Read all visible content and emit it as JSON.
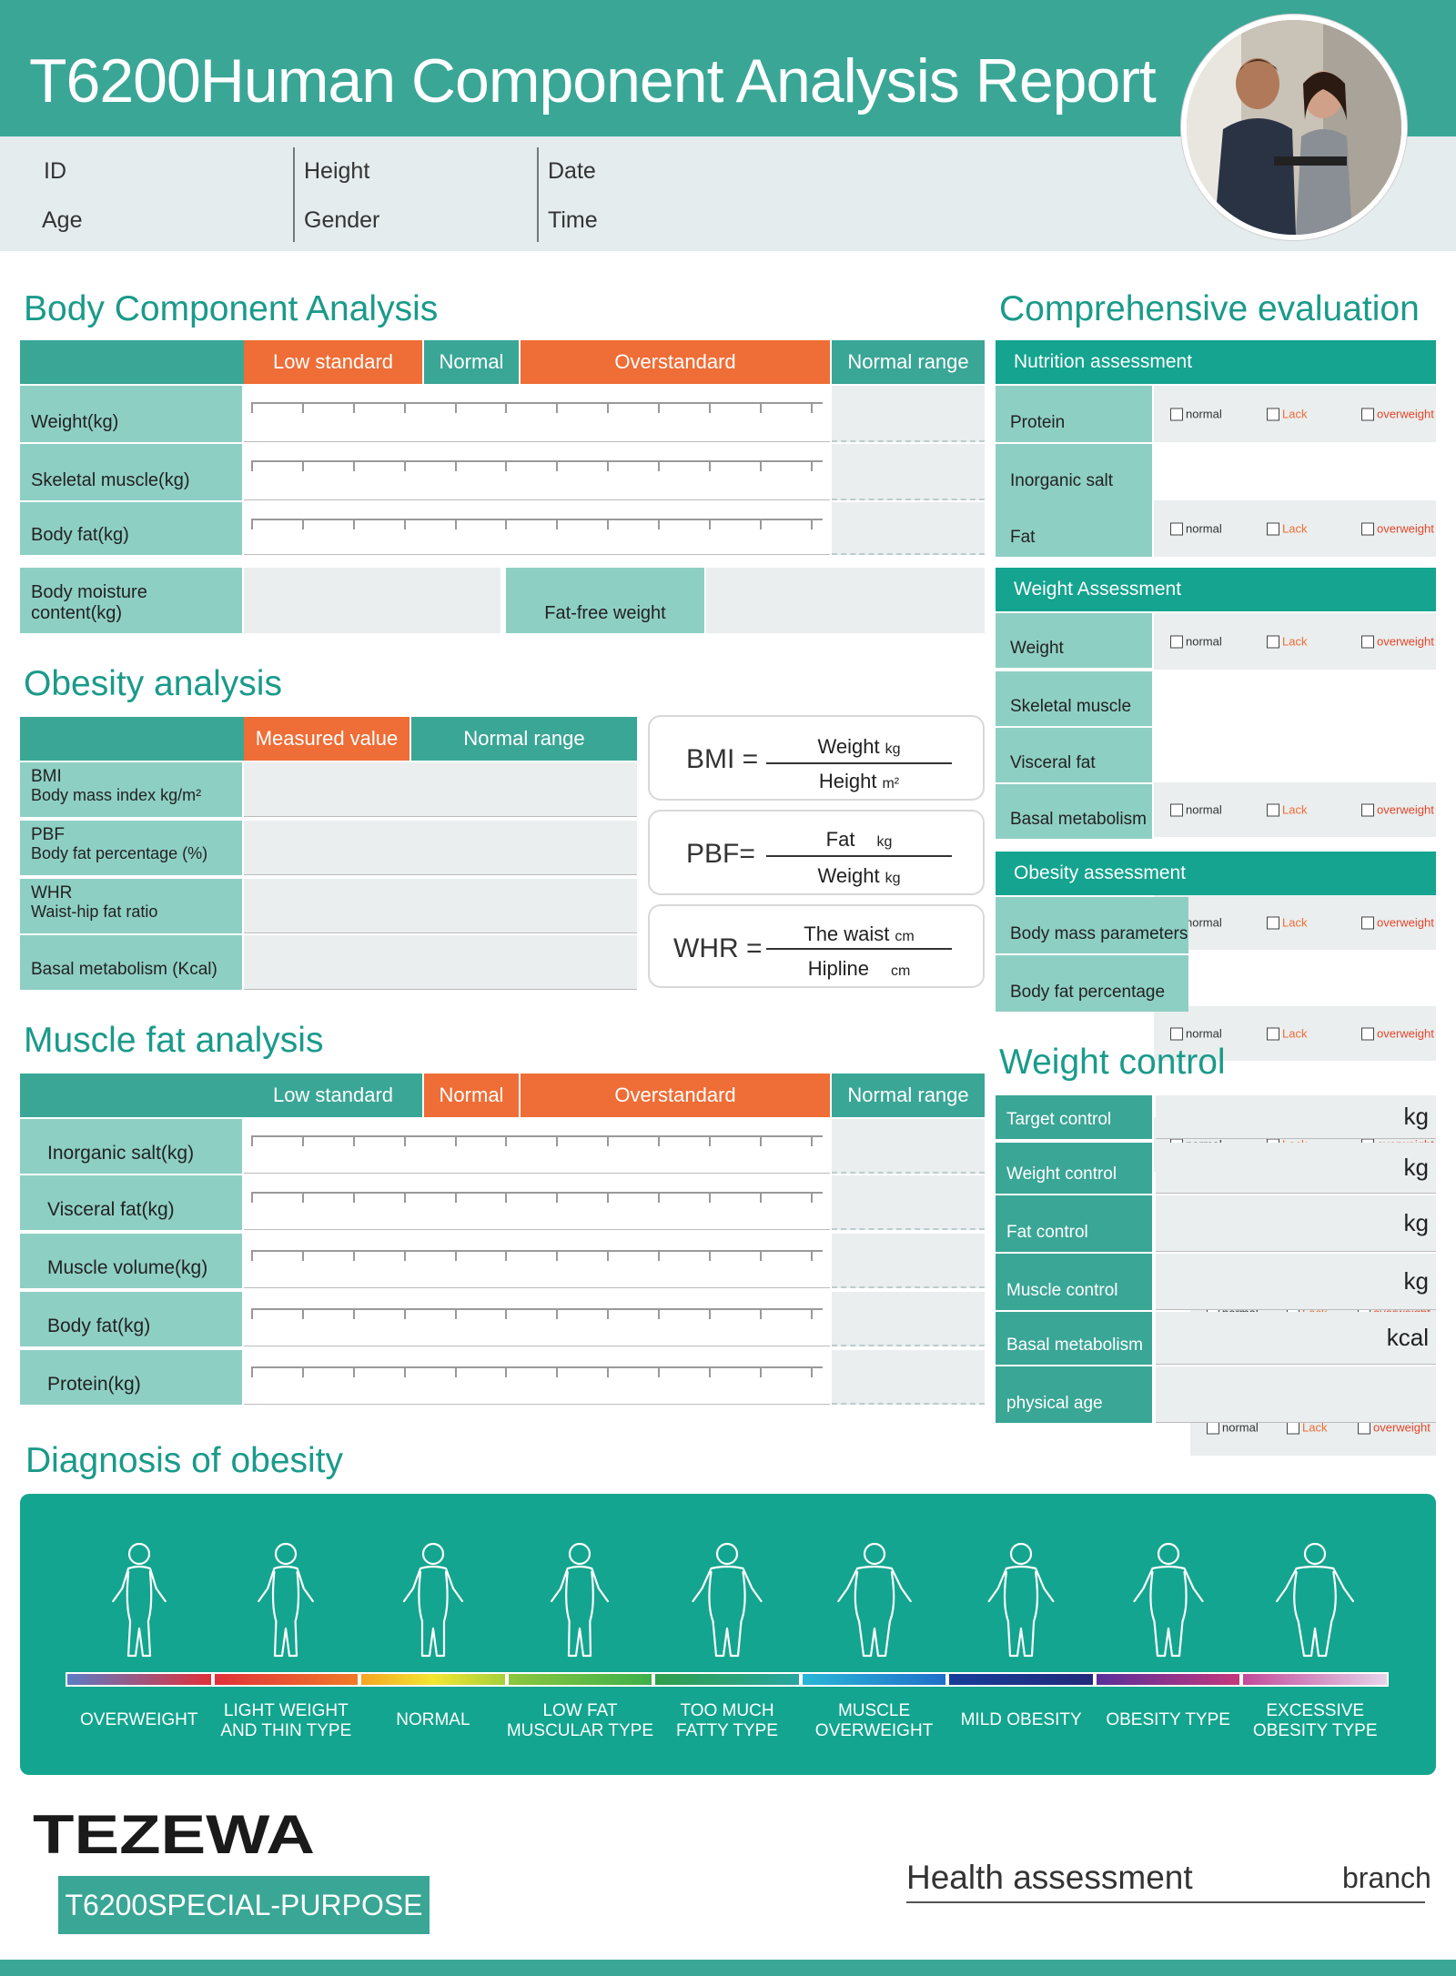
{
  "header": {
    "title": "T6200Human Component Analysis Report",
    "fields": {
      "id": "ID",
      "age": "Age",
      "height": "Height",
      "gender": "Gender",
      "date": "Date",
      "time": "Time"
    }
  },
  "body_component": {
    "title": "Body Component Analysis",
    "columns": {
      "low": "Low standard",
      "normal": "Normal",
      "over": "Overstandard",
      "range": "Normal range"
    },
    "rows": [
      "Weight(kg)",
      "Skeletal muscle(kg)",
      "Body fat(kg)"
    ],
    "moisture_label": "Body moisture content(kg)",
    "fatfree_label": "Fat-free weight"
  },
  "obesity": {
    "title": "Obesity analysis",
    "columns": {
      "measured": "Measured value",
      "range": "Normal range"
    },
    "rows": [
      {
        "abbr": "BMI",
        "desc": "Body mass index kg/m²"
      },
      {
        "abbr": "PBF",
        "desc": "Body fat percentage (%)"
      },
      {
        "abbr": "WHR",
        "desc": "Waist-hip fat ratio"
      },
      {
        "abbr": "",
        "desc": "Basal metabolism (Kcal)"
      }
    ],
    "formulas": {
      "bmi": {
        "lhs": "BMI =",
        "num": "Weight",
        "num_unit": "kg",
        "den": "Height",
        "den_unit": "m²"
      },
      "pbf": {
        "lhs": "PBF=",
        "num": "Fat",
        "num_unit": "kg",
        "den": "Weight",
        "den_unit": "kg"
      },
      "whr": {
        "lhs": "WHR =",
        "num": "The waist",
        "num_unit": "cm",
        "den": "Hipline",
        "den_unit": "cm"
      }
    }
  },
  "muscle_fat": {
    "title": "Muscle fat analysis",
    "columns": {
      "low": "Low standard",
      "normal": "Normal",
      "over": "Overstandard",
      "range": "Normal range"
    },
    "rows": [
      "Inorganic salt(kg)",
      "Visceral fat(kg)",
      "Muscle volume(kg)",
      "Body fat(kg)",
      "Protein(kg)"
    ]
  },
  "comprehensive": {
    "title": "Comprehensive evaluation",
    "options": {
      "normal": "normal",
      "lack": "Lack",
      "over": "overweight"
    },
    "nutrition": {
      "header": "Nutrition assessment",
      "items": [
        "Protein",
        "Inorganic salt",
        "Fat"
      ]
    },
    "weight": {
      "header": "Weight Assessment",
      "items": [
        "Weight",
        "Skeletal muscle",
        "Visceral fat",
        "Basal metabolism"
      ]
    },
    "obesity": {
      "header": "Obesity assessment",
      "items": [
        "Body mass parameters",
        "Body fat percentage"
      ]
    }
  },
  "weight_control": {
    "title": "Weight control",
    "rows": [
      {
        "label": "Target control",
        "unit": "kg"
      },
      {
        "label": "Weight control",
        "unit": "kg"
      },
      {
        "label": "Fat control",
        "unit": "kg"
      },
      {
        "label": "Muscle control",
        "unit": "kg"
      },
      {
        "label": "Basal metabolism",
        "unit": "kcal"
      },
      {
        "label": "physical age",
        "unit": ""
      }
    ]
  },
  "diagnosis": {
    "title": "Diagnosis of obesity",
    "categories": [
      {
        "l1": "OVERWEIGHT",
        "l2": ""
      },
      {
        "l1": "LIGHT WEIGHT",
        "l2": "AND THIN TYPE"
      },
      {
        "l1": "NORMAL",
        "l2": ""
      },
      {
        "l1": "LOW FAT",
        "l2": "MUSCULAR TYPE"
      },
      {
        "l1": "TOO MUCH",
        "l2": "FATTY TYPE"
      },
      {
        "l1": "MUSCLE",
        "l2": "OVERWEIGHT"
      },
      {
        "l1": "MILD OBESITY",
        "l2": ""
      },
      {
        "l1": "OBESITY TYPE",
        "l2": ""
      },
      {
        "l1": "EXCESSIVE",
        "l2": "OBESITY TYPE"
      }
    ]
  },
  "footer": {
    "logo": "TEZEWA",
    "model": "T6200SPECIAL-PURPOSE",
    "health": "Health assessment",
    "branch": "branch"
  },
  "colors": {
    "teal": "#3aa696",
    "teal_dark": "#14a48f",
    "orange": "#ef6d36",
    "label_bg": "#8ecfc4"
  }
}
